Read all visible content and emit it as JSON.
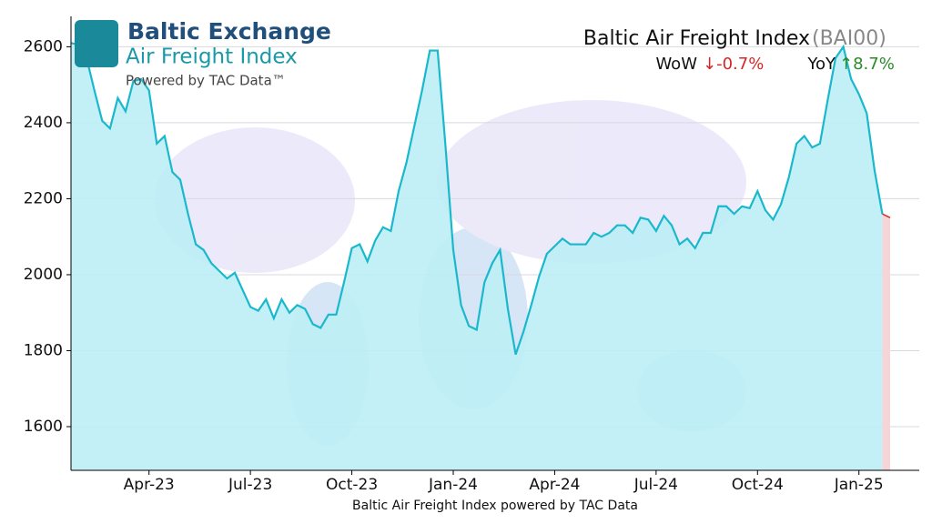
{
  "chart_data": {
    "type": "line",
    "title": "Baltic Air Freight Index",
    "title_code": "(BAI00)",
    "wow_label": "WoW",
    "wow_value": "↓-0.7%",
    "yoy_label": "YoY",
    "yoy_value": "↑8.7%",
    "logo_title": "Baltic Exchange",
    "logo_subtitle": "Air Freight Index",
    "logo_powered": "Powered by TAC Data™",
    "x_label": "Baltic Air Freight Index powered by TAC Data",
    "categories": [
      null,
      null,
      null,
      null,
      null,
      null,
      null,
      null,
      null,
      null,
      "Apr-23",
      null,
      null,
      null,
      null,
      null,
      null,
      null,
      null,
      null,
      null,
      null,
      null,
      "Jul-23",
      null,
      null,
      null,
      null,
      null,
      null,
      null,
      null,
      null,
      null,
      null,
      null,
      "Oct-23",
      null,
      null,
      null,
      null,
      null,
      null,
      null,
      null,
      null,
      null,
      null,
      null,
      "Jan-24",
      null,
      null,
      null,
      null,
      null,
      null,
      null,
      null,
      null,
      null,
      null,
      null,
      "Apr-24",
      null,
      null,
      null,
      null,
      null,
      null,
      null,
      null,
      null,
      null,
      null,
      null,
      "Jul-24",
      null,
      null,
      null,
      null,
      null,
      null,
      null,
      null,
      null,
      null,
      null,
      null,
      "Oct-24",
      null,
      null,
      null,
      null,
      null,
      null,
      null,
      null,
      null,
      null,
      null,
      null,
      "Jan-25",
      null,
      null,
      null,
      null
    ],
    "values": [
      2610,
      2605,
      2570,
      2485,
      2405,
      2385,
      2465,
      2430,
      2510,
      2515,
      2485,
      2345,
      2365,
      2270,
      2250,
      2160,
      2080,
      2065,
      2030,
      2010,
      1990,
      2005,
      1960,
      1915,
      1905,
      1935,
      1885,
      1935,
      1900,
      1920,
      1910,
      1870,
      1860,
      1895,
      1895,
      1980,
      2070,
      2080,
      2035,
      2090,
      2125,
      2115,
      2220,
      2295,
      2390,
      2485,
      2590,
      2590,
      2340,
      2065,
      1920,
      1865,
      1855,
      1980,
      2030,
      2065,
      1910,
      1790,
      1850,
      1920,
      1995,
      2055,
      2075,
      2095,
      2080,
      2080,
      2080,
      2110,
      2100,
      2110,
      2130,
      2130,
      2110,
      2150,
      2145,
      2115,
      2155,
      2130,
      2080,
      2095,
      2070,
      2110,
      2110,
      2180,
      2180,
      2160,
      2180,
      2175,
      2220,
      2170,
      2145,
      2185,
      2255,
      2345,
      2365,
      2335,
      2345,
      2460,
      2570,
      2600,
      2515,
      2475,
      2425,
      2275,
      2160,
      2150
    ],
    "color": "#1ab8cc",
    "fill_color": "#bdeef5",
    "change_color": "#d62728",
    "change_fill": "#f5d5d8",
    "ylim": [
      1485,
      2680
    ],
    "yticks": [
      1600,
      1800,
      2000,
      2200,
      2400,
      2600
    ],
    "grid": true
  }
}
